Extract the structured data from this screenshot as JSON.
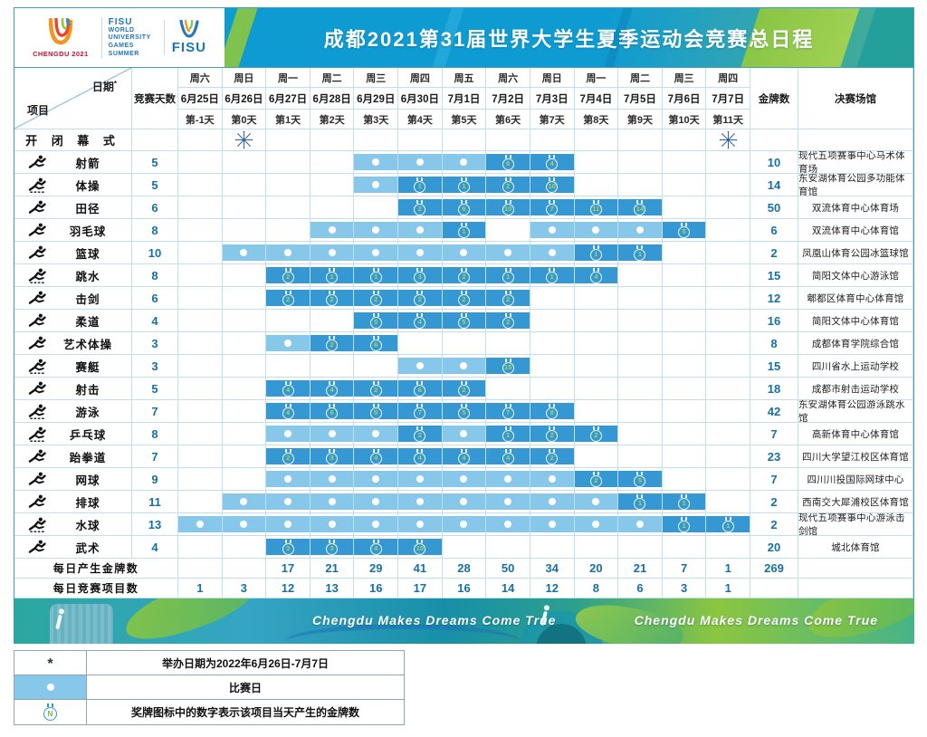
{
  "header": {
    "chengdu_logo_text": "CHENGDU 2021",
    "fisu_block": [
      "FISU",
      "WORLD",
      "UNIVERSITY",
      "GAMES",
      "SUMMER"
    ],
    "fisu_logo_text": "FISU",
    "title": "成都2021第31届世界大学生夏季运动会竞赛总日程"
  },
  "table": {
    "corner": {
      "date_label": "日期",
      "date_note": "*",
      "item_label": "项目"
    },
    "days_col_label": "竞赛天数",
    "gold_col_label": "金牌数",
    "venue_col_label": "决赛场馆",
    "columns": [
      {
        "weekday": "周六",
        "date": "6月25日",
        "day": "第-1天"
      },
      {
        "weekday": "周日",
        "date": "6月26日",
        "day": "第0天"
      },
      {
        "weekday": "周一",
        "date": "6月27日",
        "day": "第1天"
      },
      {
        "weekday": "周二",
        "date": "6月28日",
        "day": "第2天"
      },
      {
        "weekday": "周三",
        "date": "6月29日",
        "day": "第3天"
      },
      {
        "weekday": "周四",
        "date": "6月30日",
        "day": "第4天"
      },
      {
        "weekday": "周五",
        "date": "7月1日",
        "day": "第5天"
      },
      {
        "weekday": "周六",
        "date": "7月2日",
        "day": "第6天"
      },
      {
        "weekday": "周日",
        "date": "7月3日",
        "day": "第7天"
      },
      {
        "weekday": "周一",
        "date": "7月4日",
        "day": "第8天"
      },
      {
        "weekday": "周二",
        "date": "7月5日",
        "day": "第9天"
      },
      {
        "weekday": "周三",
        "date": "7月6日",
        "day": "第10天"
      },
      {
        "weekday": "周四",
        "date": "7月7日",
        "day": "第11天"
      }
    ],
    "ceremony": {
      "label": "开 闭 幕 式",
      "firework_columns": [
        1,
        12
      ]
    },
    "sports": [
      {
        "name": "射箭",
        "icon": "archery-icon",
        "underline": false,
        "days": "5",
        "gold": "10",
        "venue": "现代五项赛事中心马术体育场",
        "cells": [
          null,
          null,
          null,
          null,
          "dot",
          "dot",
          "dot",
          6,
          4,
          null,
          null,
          null,
          null
        ]
      },
      {
        "name": "体操",
        "icon": "gymnastics-icon",
        "underline": true,
        "days": "5",
        "gold": "14",
        "venue": "东安湖体育公园多功能体育馆",
        "cells": [
          null,
          null,
          null,
          null,
          "dot",
          1,
          1,
          2,
          10,
          null,
          null,
          null,
          null
        ]
      },
      {
        "name": "田径",
        "icon": "athletics-icon",
        "underline": false,
        "days": "6",
        "gold": "50",
        "venue": "双流体育中心体育场",
        "cells": [
          null,
          null,
          null,
          null,
          null,
          2,
          6,
          10,
          7,
          11,
          14,
          null,
          null
        ]
      },
      {
        "name": "羽毛球",
        "icon": "badminton-icon",
        "underline": false,
        "days": "8",
        "gold": "6",
        "venue": "双流体育中心体育馆",
        "cells": [
          null,
          null,
          null,
          "dot",
          "dot",
          "dot",
          1,
          null,
          "dot",
          "dot",
          "dot",
          5,
          null
        ]
      },
      {
        "name": "篮球",
        "icon": "basketball-icon",
        "underline": false,
        "days": "10",
        "gold": "2",
        "venue": "凤凰山体育公园冰篮球馆",
        "cells": [
          null,
          "dot",
          "dot",
          "dot",
          "dot",
          "dot",
          "dot",
          "dot",
          "dot",
          1,
          1,
          null,
          null
        ]
      },
      {
        "name": "跳水",
        "icon": "diving-icon",
        "underline": true,
        "days": "8",
        "gold": "15",
        "venue": "简阳文体中心游泳馆",
        "cells": [
          null,
          null,
          2,
          1,
          1,
          3,
          2,
          1,
          1,
          4,
          null,
          null,
          null
        ]
      },
      {
        "name": "击剑",
        "icon": "fencing-icon",
        "underline": false,
        "days": "6",
        "gold": "12",
        "venue": "郫都区体育中心体育馆",
        "cells": [
          null,
          null,
          2,
          2,
          2,
          2,
          2,
          2,
          null,
          null,
          null,
          null,
          null
        ]
      },
      {
        "name": "柔道",
        "icon": "judo-icon",
        "underline": false,
        "days": "4",
        "gold": "16",
        "venue": "简阳文体中心体育馆",
        "cells": [
          null,
          null,
          null,
          null,
          5,
          4,
          5,
          2,
          null,
          null,
          null,
          null,
          null
        ]
      },
      {
        "name": "艺术体操",
        "icon": "rhythmic-gymnastics-icon",
        "underline": false,
        "days": "3",
        "gold": "8",
        "venue": "成都体育学院综合馆",
        "cells": [
          null,
          null,
          "dot",
          2,
          6,
          null,
          null,
          null,
          null,
          null,
          null,
          null,
          null
        ]
      },
      {
        "name": "赛艇",
        "icon": "rowing-icon",
        "underline": true,
        "days": "3",
        "gold": "15",
        "venue": "四川省水上运动学校",
        "cells": [
          null,
          null,
          null,
          null,
          null,
          "dot",
          "dot",
          15,
          null,
          null,
          null,
          null,
          null
        ]
      },
      {
        "name": "射击",
        "icon": "shooting-icon",
        "underline": false,
        "days": "5",
        "gold": "18",
        "venue": "成都市射击运动学校",
        "cells": [
          null,
          null,
          4,
          4,
          2,
          6,
          2,
          null,
          null,
          null,
          null,
          null,
          null
        ]
      },
      {
        "name": "游泳",
        "icon": "swimming-icon",
        "underline": true,
        "days": "7",
        "gold": "42",
        "venue": "东安湖体育公园游泳跳水馆",
        "cells": [
          null,
          null,
          4,
          6,
          5,
          7,
          5,
          7,
          8,
          null,
          null,
          null,
          null
        ]
      },
      {
        "name": "乒乓球",
        "icon": "table-tennis-icon",
        "underline": true,
        "days": "8",
        "gold": "7",
        "venue": "高新体育中心体育馆",
        "cells": [
          null,
          null,
          "dot",
          "dot",
          "dot",
          2,
          "dot",
          1,
          2,
          2,
          null,
          null,
          null
        ]
      },
      {
        "name": "跆拳道",
        "icon": "taekwondo-icon",
        "underline": false,
        "days": "7",
        "gold": "23",
        "venue": "四川大学望江校区体育馆",
        "cells": [
          null,
          null,
          2,
          3,
          4,
          4,
          4,
          4,
          2,
          null,
          null,
          null,
          null
        ]
      },
      {
        "name": "网球",
        "icon": "tennis-icon",
        "underline": false,
        "days": "9",
        "gold": "7",
        "venue": "四川川投国际网球中心",
        "cells": [
          null,
          null,
          "dot",
          "dot",
          "dot",
          "dot",
          "dot",
          "dot",
          "dot",
          2,
          5,
          null,
          null
        ]
      },
      {
        "name": "排球",
        "icon": "volleyball-icon",
        "underline": false,
        "days": "11",
        "gold": "2",
        "venue": "西南交大犀浦校区体育馆",
        "cells": [
          null,
          "dot",
          "dot",
          "dot",
          "dot",
          "dot",
          "dot",
          "dot",
          "dot",
          "dot",
          1,
          1,
          null
        ]
      },
      {
        "name": "水球",
        "icon": "water-polo-icon",
        "underline": true,
        "days": "13",
        "gold": "2",
        "venue": "现代五项赛事中心游泳击剑馆",
        "cells": [
          "dot",
          "dot",
          "dot",
          "dot",
          "dot",
          "dot",
          "dot",
          "dot",
          "dot",
          "dot",
          "dot",
          1,
          1
        ]
      },
      {
        "name": "武术",
        "icon": "wushu-icon",
        "underline": false,
        "days": "4",
        "gold": "20",
        "venue": "城北体育馆",
        "cells": [
          null,
          null,
          3,
          3,
          4,
          10,
          null,
          null,
          null,
          null,
          null,
          null,
          null
        ]
      }
    ],
    "daily_gold": {
      "label": "每日产生金牌数",
      "values": [
        "",
        "",
        "17",
        "21",
        "29",
        "41",
        "28",
        "50",
        "34",
        "20",
        "21",
        "7",
        "1"
      ],
      "total": "269"
    },
    "daily_events": {
      "label": "每日竞赛项目数",
      "values": [
        "1",
        "3",
        "12",
        "13",
        "16",
        "17",
        "16",
        "14",
        "12",
        "8",
        "6",
        "3",
        "1"
      ]
    }
  },
  "banner": {
    "slogan_left": "Chengdu Makes Dreams Come True",
    "slogan_right": "Chengdu Makes Dreams Come True"
  },
  "legend": {
    "note_symbol": "*",
    "note_text": "举办日期为2022年6月26日-7月7日",
    "dot_text": "比赛日",
    "medal_text": "奖牌图标中的数字表示该项目当天产生的金牌数"
  },
  "colors": {
    "title_bar_blue": "#0E9BD2",
    "accent_green": "#8DC63F",
    "competition_day_cell": "#87C8EA",
    "medal_day_cell": "#3598D2",
    "number_blue": "#1570A6",
    "medal_number_green": "#A9D84F",
    "grid_line": "#BFDEEE"
  }
}
